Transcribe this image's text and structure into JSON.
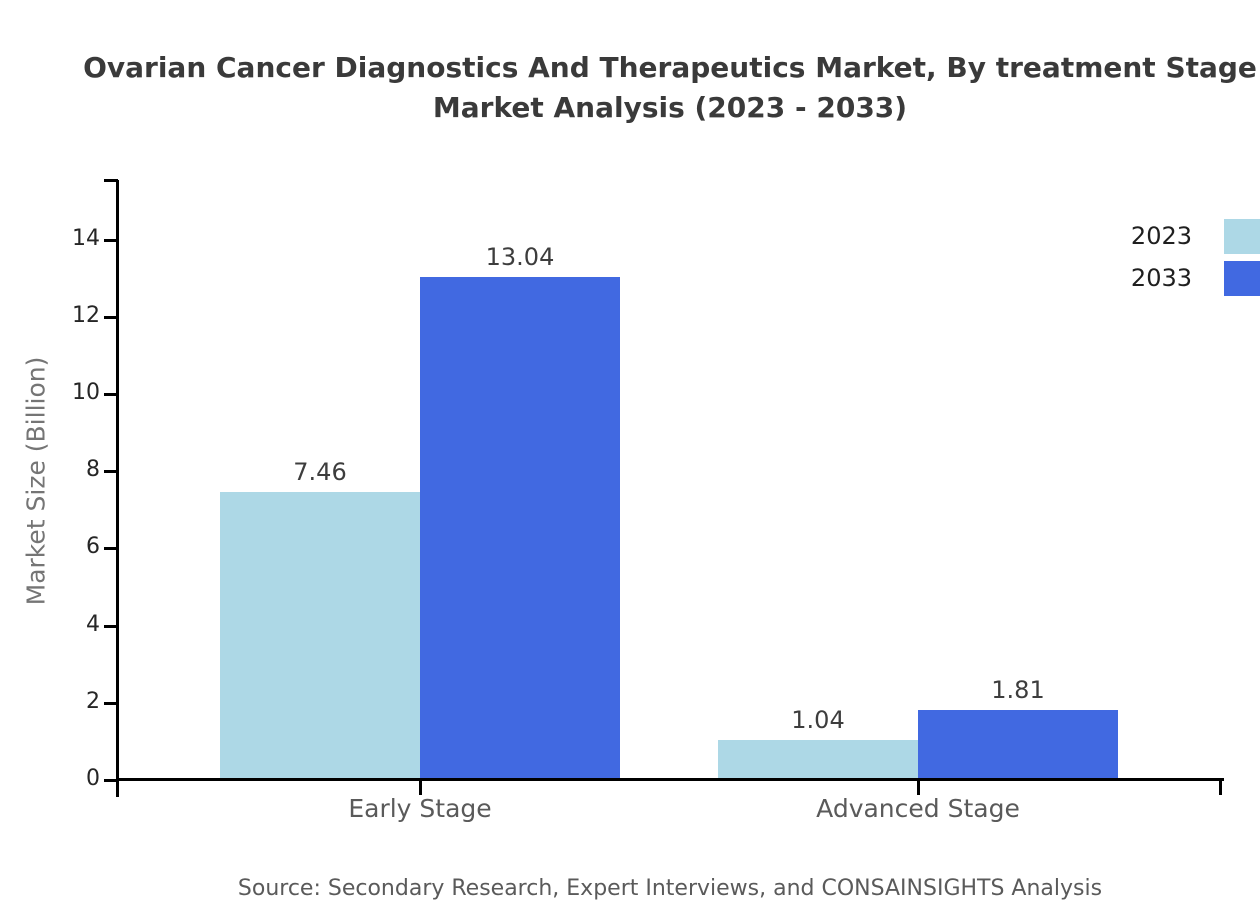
{
  "chart_data": {
    "type": "bar",
    "title": "Ovarian Cancer Diagnostics And Therapeutics Market, By treatment Stage\nMarket Analysis (2023 - 2033)",
    "categories": [
      "Early Stage",
      "Advanced Stage"
    ],
    "series": [
      {
        "name": "2023",
        "color": "#ADD8E6",
        "values": [
          7.46,
          1.04
        ]
      },
      {
        "name": "2033",
        "color": "#4169E1",
        "values": [
          13.04,
          1.81
        ]
      }
    ],
    "value_labels": [
      "7.46",
      "13.04",
      "1.04",
      "1.81"
    ],
    "xlabel": "",
    "ylabel": "Market Size (Billion)",
    "ylim": [
      0,
      15.55
    ],
    "yticks": [
      0,
      2,
      4,
      6,
      8,
      10,
      12,
      14
    ],
    "grid": false,
    "legend_position": "outside-top-right",
    "source": "Source: Secondary Research, Expert Interviews, and CONSAINSIGHTS Analysis"
  },
  "colors": {
    "axis": "#000000",
    "tick_label": "#262626",
    "value_label": "#3d3d3d",
    "category_label": "#5a5a5a",
    "legend_label": "#1f1f1f",
    "title": "#3a3a3a",
    "muted_gray": "#757575"
  }
}
